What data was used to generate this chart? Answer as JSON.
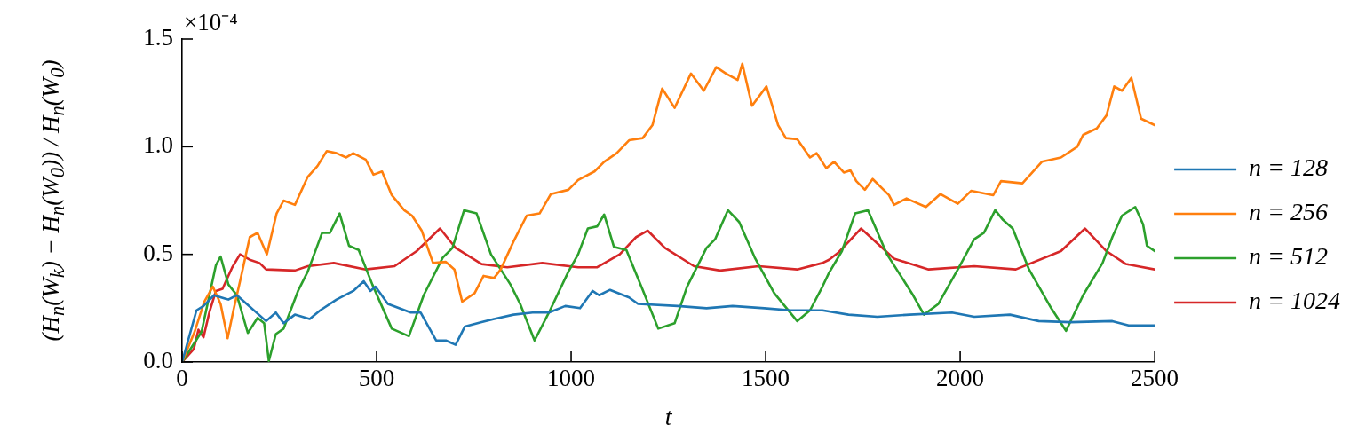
{
  "chart_data": {
    "type": "line",
    "xlabel": "t",
    "ylabel": "(H$_{n}$(W$_{k}$) − H$_{n}$(W$_{0}$)) / H$_{n}$(W$_{0}$)",
    "annotations": [
      "×10⁻⁴"
    ],
    "xlim": [
      0,
      2500
    ],
    "xticks": [
      0,
      500,
      1000,
      1500,
      2000,
      2500
    ],
    "ylim": [
      0,
      1.5
    ],
    "yticks": [
      {
        "value": 0,
        "label": "0.0"
      },
      {
        "value": 0.5,
        "label": "0.5"
      },
      {
        "value": 1,
        "label": "1.0"
      },
      {
        "value": 1.5,
        "label": "1.5"
      }
    ],
    "grid": false,
    "legend": "right",
    "marker": "none",
    "line_style": "solid",
    "series": [
      {
        "name": "n = 128",
        "color": "#1f77b4",
        "x": [
          0,
          37,
          55,
          82,
          119,
          141,
          166,
          216,
          241,
          261,
          290,
          328,
          355,
          397,
          440,
          467,
          484,
          497,
          529,
          588,
          613,
          653,
          678,
          703,
          727,
          770,
          802,
          852,
          901,
          943,
          985,
          1023,
          1055,
          1072,
          1100,
          1149,
          1172,
          1274,
          1348,
          1415,
          1497,
          1564,
          1646,
          1713,
          1787,
          1870,
          1979,
          2036,
          2128,
          2202,
          2284,
          2391,
          2433,
          2500
        ],
        "values": [
          0,
          0.24,
          0.26,
          0.31,
          0.29,
          0.31,
          0.27,
          0.19,
          0.23,
          0.18,
          0.22,
          0.2,
          0.24,
          0.29,
          0.33,
          0.375,
          0.33,
          0.35,
          0.27,
          0.23,
          0.23,
          0.1,
          0.1,
          0.08,
          0.165,
          0.185,
          0.2,
          0.22,
          0.23,
          0.23,
          0.26,
          0.25,
          0.33,
          0.31,
          0.335,
          0.3,
          0.27,
          0.26,
          0.25,
          0.26,
          0.25,
          0.24,
          0.24,
          0.22,
          0.21,
          0.22,
          0.23,
          0.21,
          0.22,
          0.19,
          0.185,
          0.19,
          0.17,
          0.17
        ]
      },
      {
        "name": "n = 256",
        "color": "#ff7f0e",
        "x": [
          0,
          32,
          57,
          79,
          99,
          117,
          132,
          149,
          174,
          194,
          218,
          243,
          261,
          290,
          323,
          348,
          372,
          397,
          422,
          440,
          472,
          492,
          514,
          539,
          571,
          591,
          616,
          645,
          678,
          700,
          720,
          752,
          775,
          802,
          819,
          852,
          886,
          919,
          948,
          993,
          1018,
          1060,
          1085,
          1117,
          1149,
          1184,
          1209,
          1234,
          1266,
          1308,
          1341,
          1373,
          1398,
          1428,
          1440,
          1465,
          1502,
          1532,
          1552,
          1581,
          1614,
          1631,
          1656,
          1676,
          1701,
          1718,
          1733,
          1755,
          1775,
          1817,
          1830,
          1862,
          1912,
          1949,
          1994,
          2028,
          2085,
          2105,
          2160,
          2210,
          2259,
          2301,
          2316,
          2351,
          2376,
          2396,
          2416,
          2440,
          2465,
          2500
        ],
        "values": [
          0,
          0.14,
          0.28,
          0.35,
          0.27,
          0.11,
          0.24,
          0.375,
          0.58,
          0.6,
          0.5,
          0.69,
          0.75,
          0.73,
          0.86,
          0.91,
          0.98,
          0.97,
          0.95,
          0.97,
          0.94,
          0.87,
          0.885,
          0.775,
          0.705,
          0.68,
          0.61,
          0.46,
          0.465,
          0.43,
          0.28,
          0.32,
          0.4,
          0.39,
          0.43,
          0.56,
          0.68,
          0.69,
          0.78,
          0.8,
          0.845,
          0.885,
          0.93,
          0.97,
          1.03,
          1.04,
          1.1,
          1.27,
          1.18,
          1.34,
          1.26,
          1.37,
          1.34,
          1.31,
          1.385,
          1.19,
          1.28,
          1.1,
          1.04,
          1.035,
          0.95,
          0.97,
          0.9,
          0.93,
          0.88,
          0.89,
          0.84,
          0.8,
          0.85,
          0.775,
          0.73,
          0.76,
          0.72,
          0.78,
          0.735,
          0.795,
          0.775,
          0.84,
          0.83,
          0.93,
          0.95,
          1,
          1.055,
          1.085,
          1.145,
          1.28,
          1.26,
          1.32,
          1.13,
          1.1
        ]
      },
      {
        "name": "n = 512",
        "color": "#2ca02c",
        "x": [
          0,
          50,
          87,
          99,
          119,
          141,
          169,
          194,
          211,
          223,
          241,
          261,
          298,
          323,
          360,
          380,
          405,
          429,
          454,
          489,
          539,
          583,
          621,
          670,
          695,
          725,
          757,
          794,
          844,
          869,
          906,
          943,
          993,
          1018,
          1043,
          1067,
          1085,
          1110,
          1142,
          1184,
          1224,
          1266,
          1298,
          1348,
          1370,
          1403,
          1432,
          1472,
          1522,
          1581,
          1614,
          1646,
          1663,
          1696,
          1730,
          1763,
          1812,
          1879,
          1907,
          1944,
          1994,
          2036,
          2061,
          2090,
          2110,
          2135,
          2177,
          2234,
          2272,
          2316,
          2366,
          2391,
          2416,
          2450,
          2470,
          2480,
          2500
        ],
        "values": [
          0,
          0.14,
          0.45,
          0.49,
          0.36,
          0.31,
          0.135,
          0.205,
          0.18,
          0.005,
          0.13,
          0.155,
          0.33,
          0.42,
          0.6,
          0.6,
          0.69,
          0.54,
          0.52,
          0.36,
          0.155,
          0.12,
          0.31,
          0.485,
          0.53,
          0.705,
          0.69,
          0.5,
          0.36,
          0.27,
          0.1,
          0.23,
          0.42,
          0.5,
          0.62,
          0.63,
          0.685,
          0.535,
          0.52,
          0.335,
          0.155,
          0.18,
          0.35,
          0.53,
          0.57,
          0.705,
          0.65,
          0.485,
          0.32,
          0.19,
          0.24,
          0.35,
          0.415,
          0.515,
          0.69,
          0.705,
          0.5,
          0.31,
          0.22,
          0.27,
          0.43,
          0.57,
          0.6,
          0.705,
          0.66,
          0.62,
          0.43,
          0.25,
          0.145,
          0.31,
          0.46,
          0.58,
          0.68,
          0.72,
          0.64,
          0.54,
          0.515
        ]
      },
      {
        "name": "n = 1024",
        "color": "#d62728",
        "x": [
          0,
          30,
          42,
          55,
          70,
          87,
          104,
          129,
          149,
          174,
          199,
          216,
          290,
          323,
          390,
          472,
          546,
          603,
          663,
          703,
          770,
          836,
          926,
          1018,
          1067,
          1125,
          1167,
          1197,
          1241,
          1316,
          1383,
          1482,
          1581,
          1646,
          1663,
          1688,
          1745,
          1830,
          1919,
          2036,
          2143,
          2259,
          2321,
          2376,
          2426,
          2500
        ],
        "values": [
          0,
          0.06,
          0.15,
          0.115,
          0.23,
          0.33,
          0.34,
          0.44,
          0.5,
          0.475,
          0.46,
          0.43,
          0.425,
          0.445,
          0.46,
          0.43,
          0.445,
          0.515,
          0.62,
          0.53,
          0.455,
          0.44,
          0.46,
          0.44,
          0.44,
          0.5,
          0.58,
          0.61,
          0.53,
          0.445,
          0.425,
          0.445,
          0.43,
          0.46,
          0.475,
          0.51,
          0.62,
          0.48,
          0.43,
          0.445,
          0.43,
          0.515,
          0.62,
          0.515,
          0.455,
          0.43
        ]
      }
    ]
  }
}
